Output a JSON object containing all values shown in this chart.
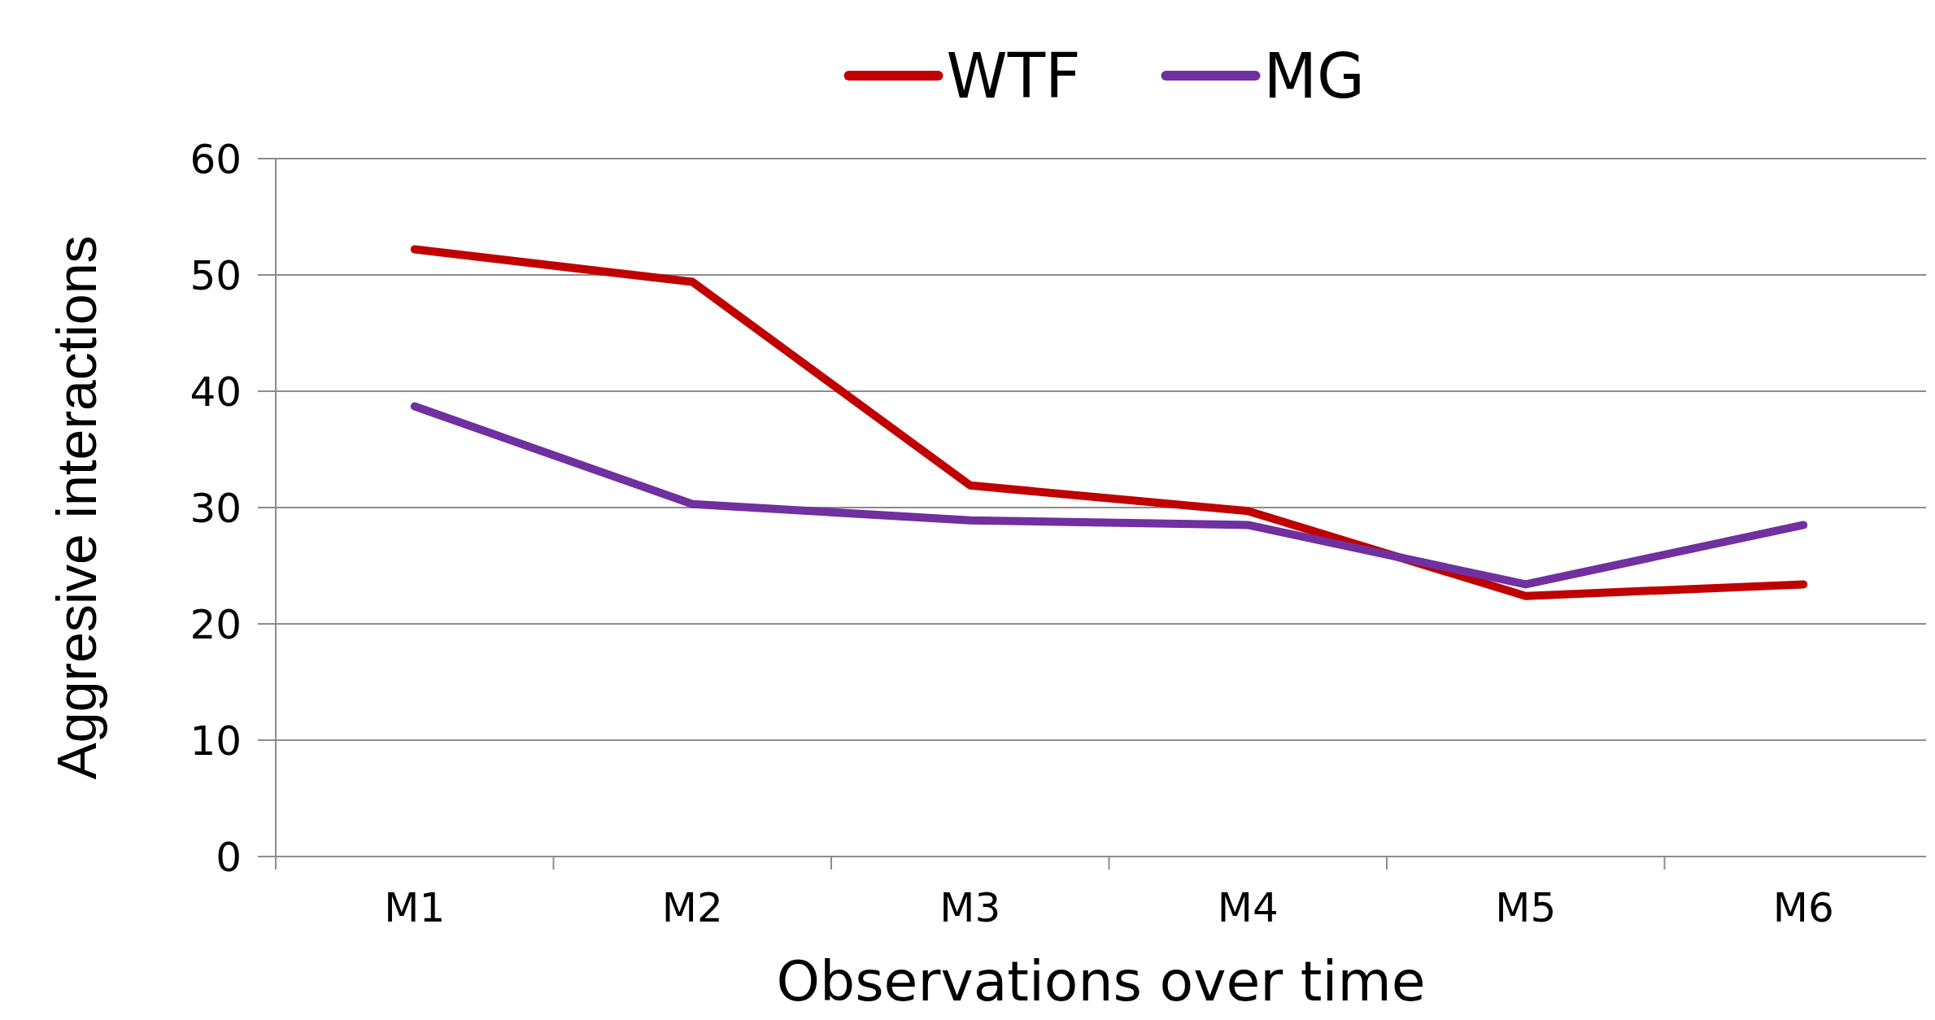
{
  "chart_data": {
    "type": "line",
    "xlabel": "Observations over time",
    "ylabel": "Aggresive interactions",
    "categories": [
      "M1",
      "M2",
      "M3",
      "M4",
      "M5",
      "M6"
    ],
    "series": [
      {
        "name": "WTF",
        "color": "#c00000",
        "values": [
          52.2,
          49.4,
          31.9,
          29.7,
          22.4,
          23.4
        ]
      },
      {
        "name": "MG",
        "color": "#7030a0",
        "values": [
          38.7,
          30.3,
          28.9,
          28.5,
          23.4,
          28.5
        ]
      }
    ],
    "ylim": [
      0,
      60
    ],
    "yticks": [
      0,
      10,
      20,
      30,
      40,
      50,
      60
    ],
    "grid": "y",
    "legend": "top",
    "marker": "none",
    "line_style": "solid"
  }
}
